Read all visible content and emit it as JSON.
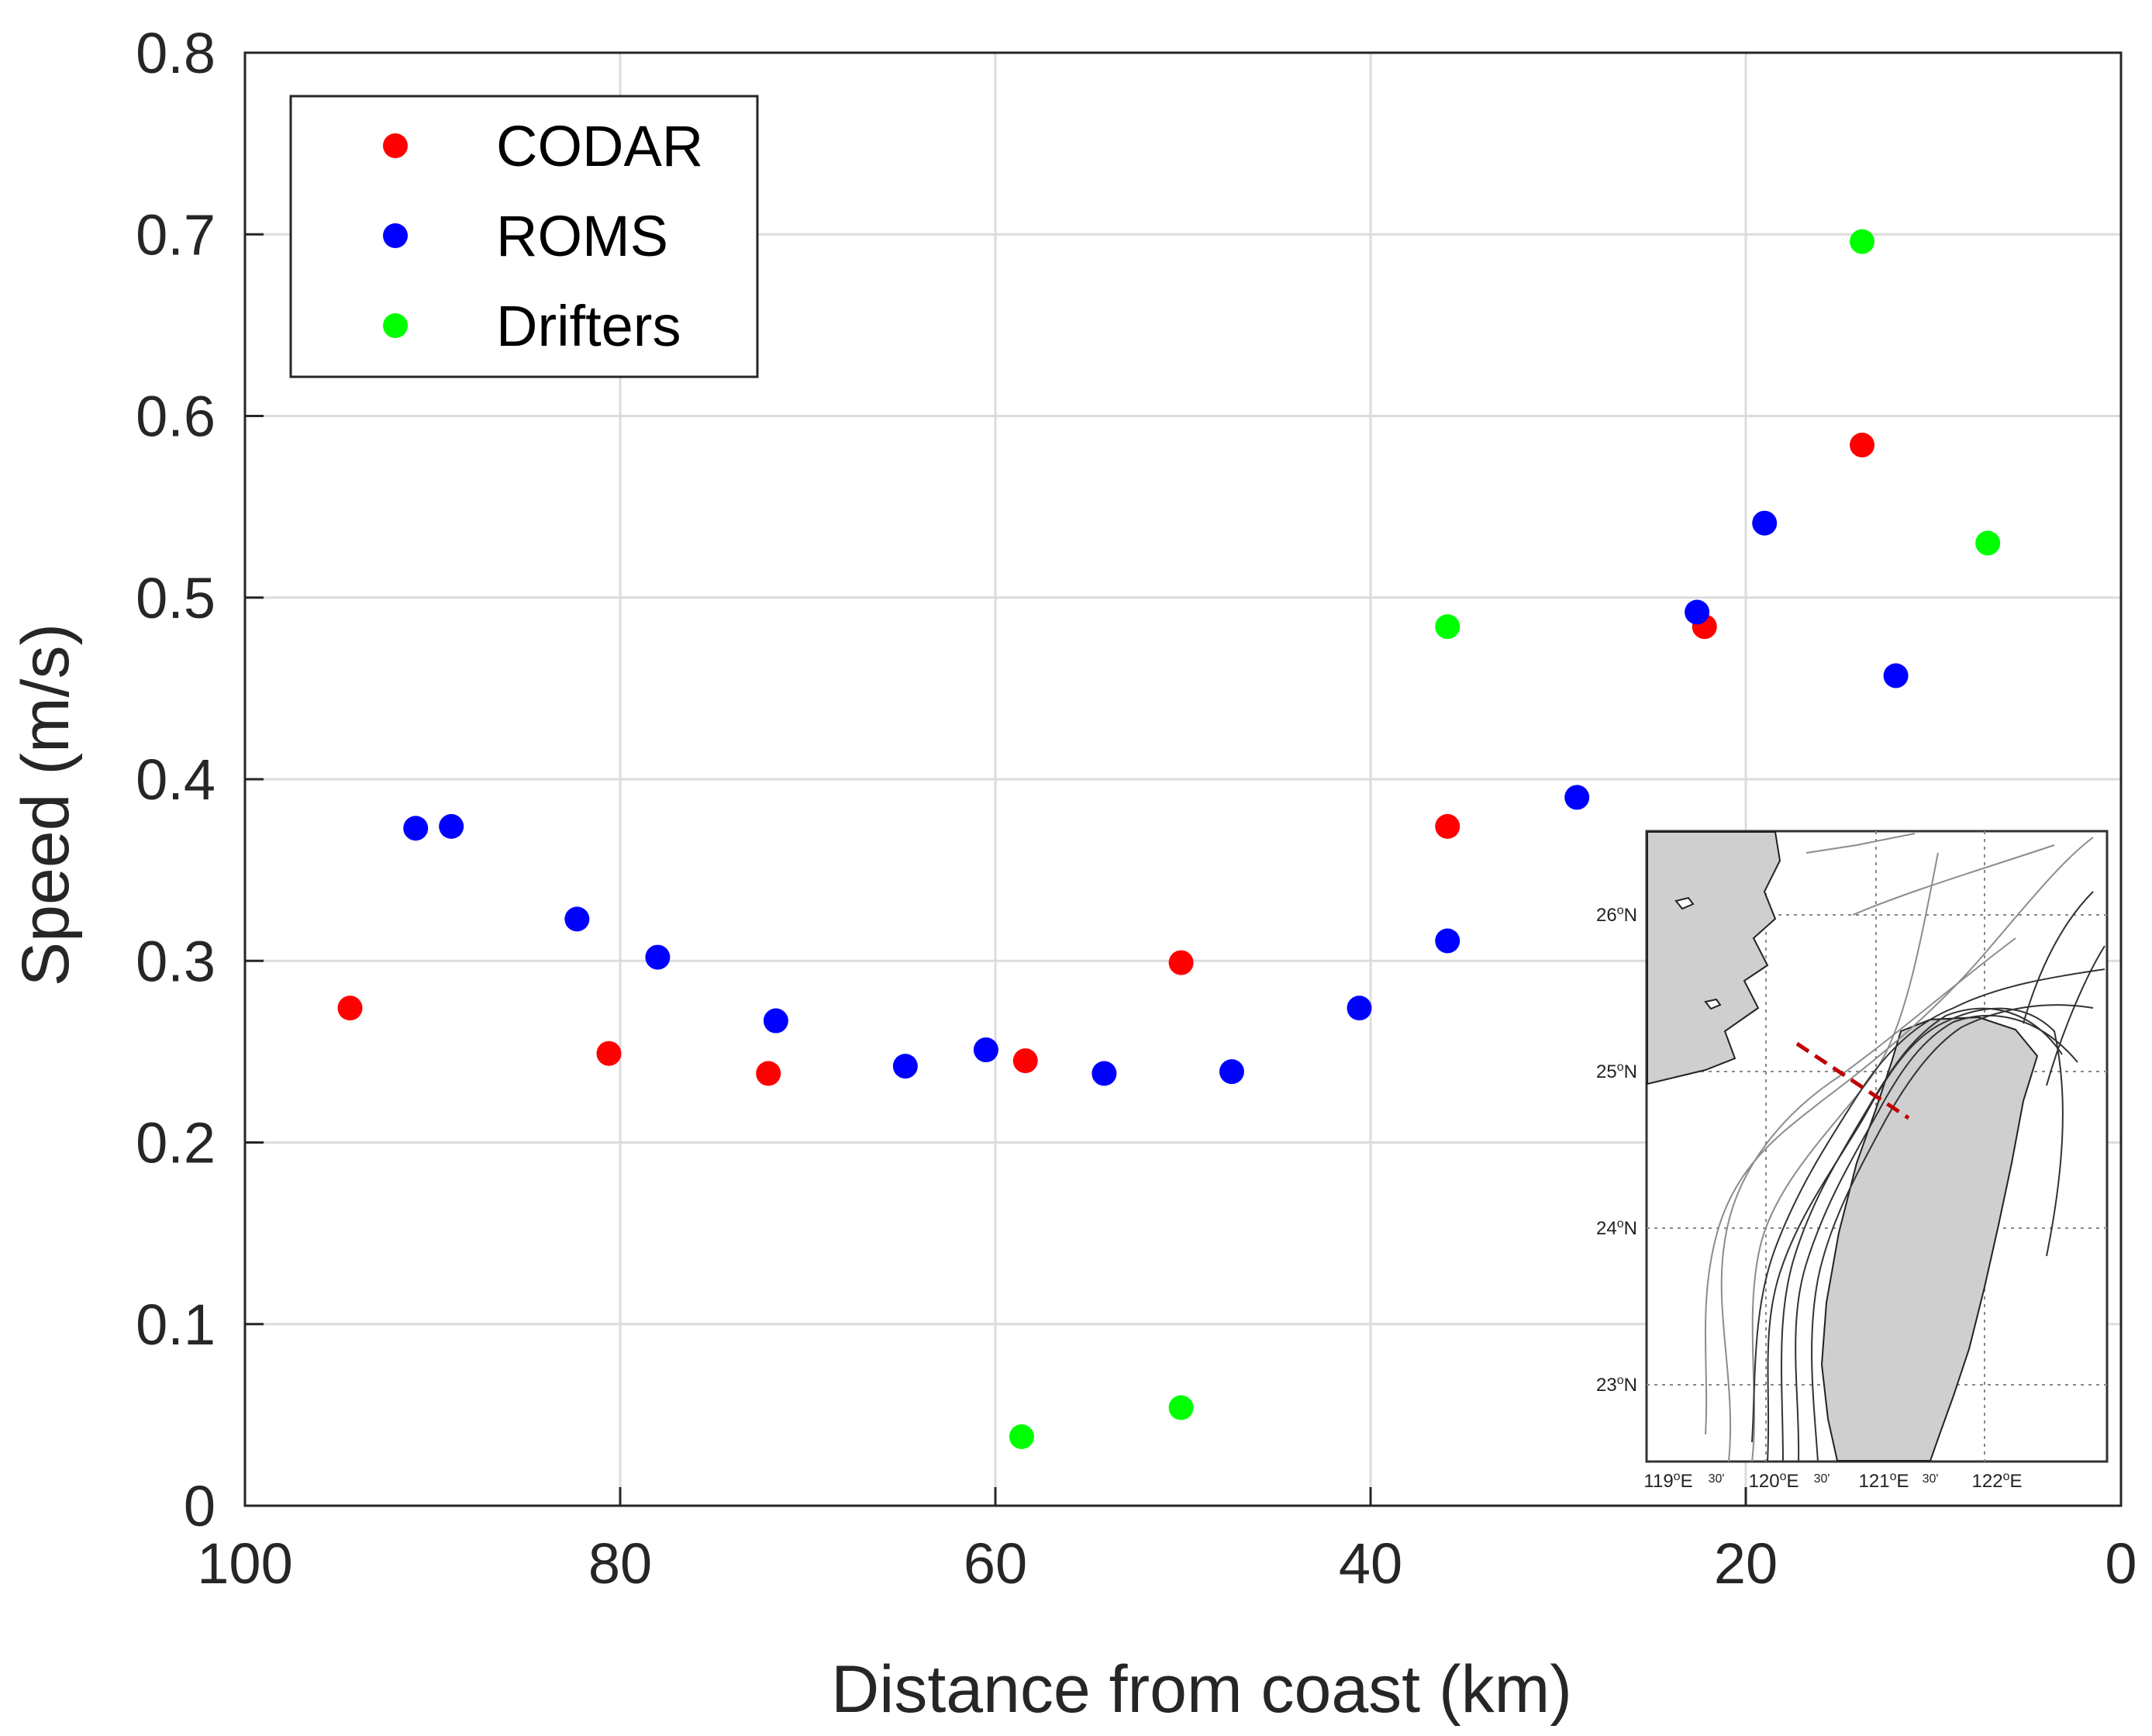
{
  "chart_data": {
    "type": "scatter",
    "title": "",
    "xlabel": "Distance from coast (km)",
    "ylabel": "Speed (m/s)",
    "xlim": [
      100,
      0
    ],
    "ylim": [
      0,
      0.8
    ],
    "x_reversed": true,
    "grid": true,
    "legend_position": "top-left",
    "x_ticks": [
      {
        "value": 100,
        "label": "100"
      },
      {
        "value": 80,
        "label": "80"
      },
      {
        "value": 60,
        "label": "60"
      },
      {
        "value": 40,
        "label": "40"
      },
      {
        "value": 20,
        "label": "20"
      },
      {
        "value": 0,
        "label": "0"
      }
    ],
    "y_ticks": [
      {
        "value": 0,
        "label": "0"
      },
      {
        "value": 0.1,
        "label": "0.1"
      },
      {
        "value": 0.2,
        "label": "0.2"
      },
      {
        "value": 0.3,
        "label": "0.3"
      },
      {
        "value": 0.4,
        "label": "0.4"
      },
      {
        "value": 0.5,
        "label": "0.5"
      },
      {
        "value": 0.6,
        "label": "0.6"
      },
      {
        "value": 0.7,
        "label": "0.7"
      },
      {
        "value": 0.8,
        "label": "0.8"
      }
    ],
    "series": [
      {
        "name": "CODAR",
        "color": "#ff0000",
        "points": [
          [
            94.4,
            0.274
          ],
          [
            80.6,
            0.249
          ],
          [
            72.1,
            0.238
          ],
          [
            58.4,
            0.245
          ],
          [
            50.1,
            0.299
          ],
          [
            35.9,
            0.374
          ],
          [
            22.2,
            0.484
          ],
          [
            13.8,
            0.584
          ]
        ]
      },
      {
        "name": "ROMS",
        "color": "#0000ff",
        "points": [
          [
            90.9,
            0.373
          ],
          [
            89.0,
            0.374
          ],
          [
            82.3,
            0.323
          ],
          [
            78.0,
            0.302
          ],
          [
            71.7,
            0.267
          ],
          [
            64.8,
            0.242
          ],
          [
            60.5,
            0.251
          ],
          [
            54.2,
            0.238
          ],
          [
            47.4,
            0.239
          ],
          [
            40.6,
            0.274
          ],
          [
            35.9,
            0.311
          ],
          [
            29.0,
            0.39
          ],
          [
            22.6,
            0.492
          ],
          [
            19.0,
            0.541
          ],
          [
            12.0,
            0.457
          ]
        ]
      },
      {
        "name": "Drifters",
        "color": "#00ff00",
        "points": [
          [
            58.6,
            0.038
          ],
          [
            50.1,
            0.054
          ],
          [
            35.9,
            0.484
          ],
          [
            13.8,
            0.696
          ],
          [
            7.1,
            0.53
          ]
        ]
      }
    ],
    "inset": {
      "description": "map",
      "lat_labels": [
        "26",
        "25",
        "24",
        "23"
      ],
      "lat_suffix": "N",
      "lon_labels": [
        "119",
        "120",
        "121",
        "122"
      ],
      "lon_suffix": "E",
      "minute_label": "30'",
      "degree_mark": "o",
      "line_color": "#c00000"
    }
  }
}
